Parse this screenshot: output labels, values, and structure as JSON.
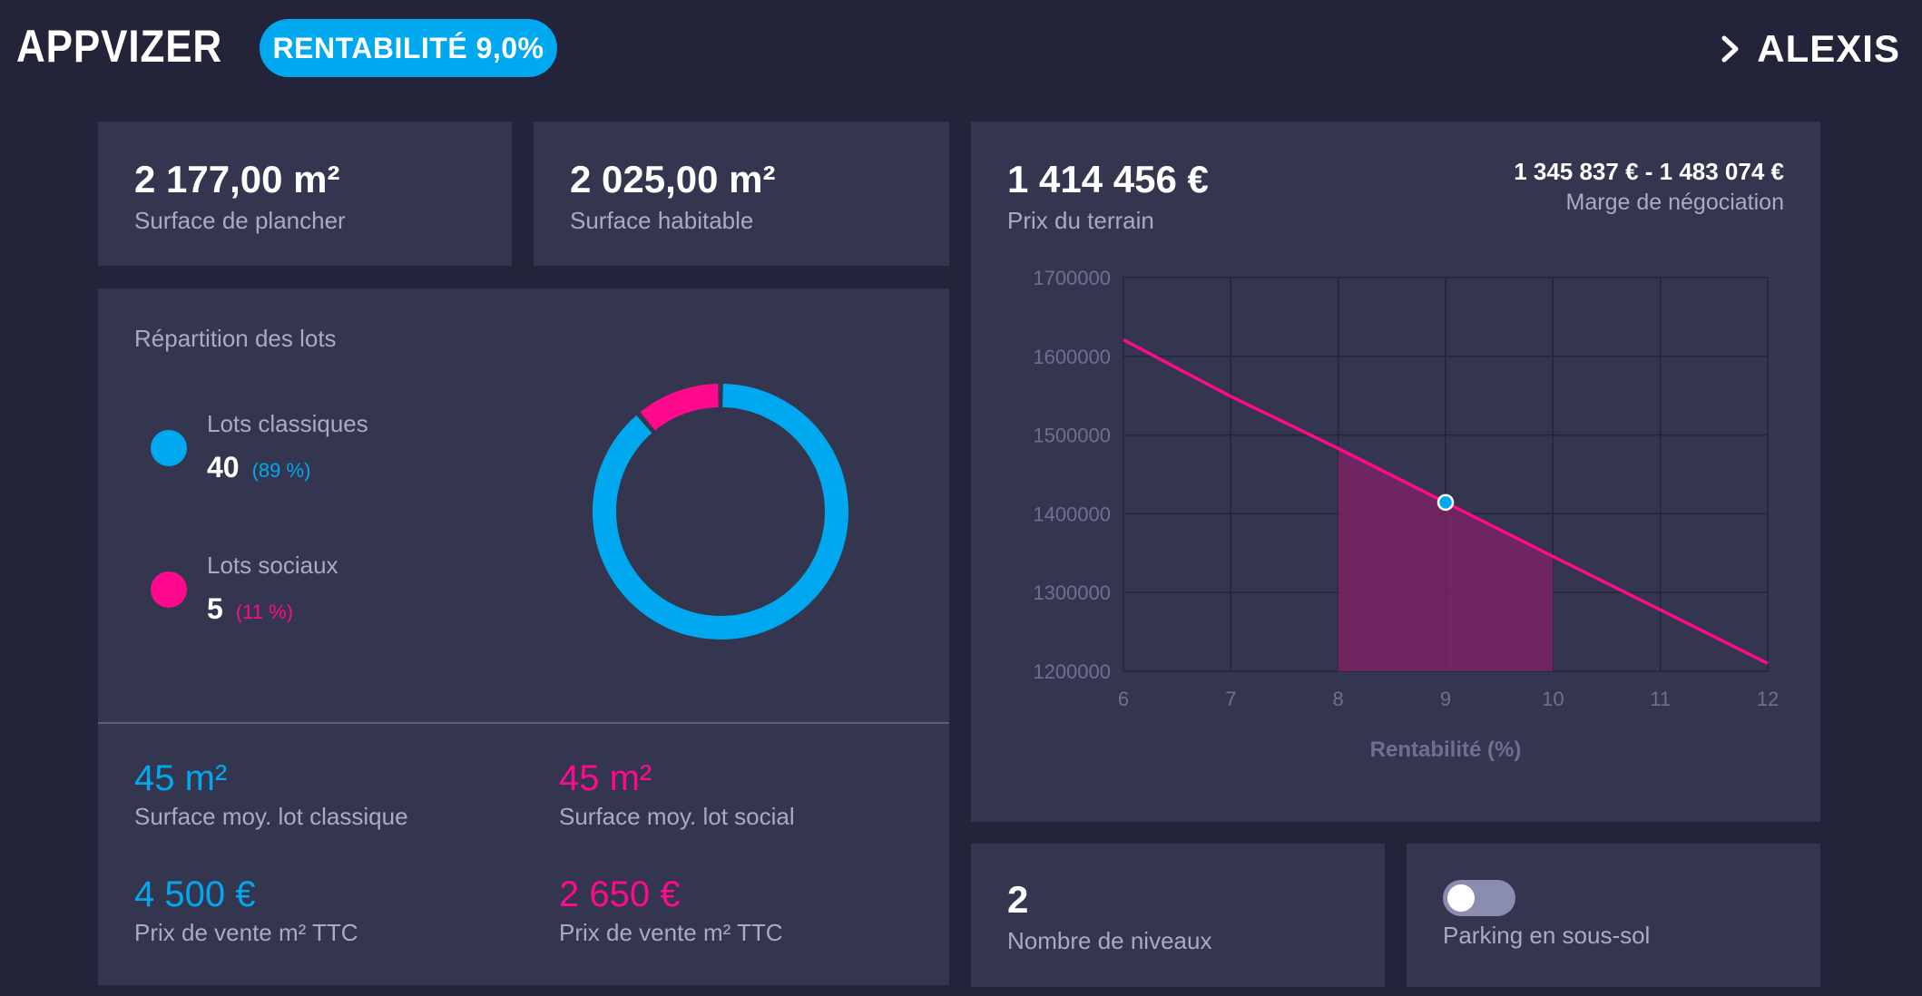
{
  "header": {
    "brand": "APPVIZER",
    "rentabilite_badge": "RENTABILITÉ 9,0%",
    "user_name": "ALEXIS"
  },
  "surfaces": {
    "plancher": {
      "value": "2 177,00 m²",
      "label": "Surface de plancher"
    },
    "habitable": {
      "value": "2 025,00 m²",
      "label": "Surface habitable"
    }
  },
  "repartition": {
    "title": "Répartition des lots",
    "classiques": {
      "label": "Lots classiques",
      "count": "40",
      "pct": "(89 %)",
      "color": "#00a8f0"
    },
    "sociaux": {
      "label": "Lots sociaux",
      "count": "5",
      "pct": "(11 %)",
      "color": "#ff0a8c"
    }
  },
  "donut_data": {
    "type": "pie",
    "slices": [
      {
        "name": "Lots classiques",
        "value": 40,
        "color": "#00a8f0"
      },
      {
        "name": "Lots sociaux",
        "value": 5,
        "color": "#ff0a8c"
      }
    ]
  },
  "stats": {
    "surface_classique": {
      "value": "45 m²",
      "label": "Surface moy. lot classique"
    },
    "surface_social": {
      "value": "45 m²",
      "label": "Surface moy. lot social"
    },
    "prix_classique": {
      "value": "4 500 €",
      "label": "Prix de vente m² TTC"
    },
    "prix_social": {
      "value": "2 650 €",
      "label": "Prix de vente m² TTC"
    }
  },
  "terrain": {
    "price": "1 414 456 €",
    "price_label": "Prix du terrain",
    "range": "1 345 837 € - 1 483 074 €",
    "range_label": "Marge de négociation"
  },
  "chart_data": {
    "type": "line",
    "title": "",
    "xlabel": "Rentabilité (%)",
    "ylabel": "",
    "xlim": [
      6,
      12
    ],
    "ylim": [
      1200000,
      1700000
    ],
    "x_ticks": [
      6,
      7,
      8,
      9,
      10,
      11,
      12
    ],
    "y_ticks": [
      1200000,
      1300000,
      1400000,
      1500000,
      1600000,
      1700000
    ],
    "grid": true,
    "series": [
      {
        "x": [
          6,
          7,
          8,
          9,
          10,
          11,
          12
        ],
        "y": [
          1621000,
          1549000,
          1483074,
          1414456,
          1345837,
          1278000,
          1210000
        ],
        "color": "#ff0a8c"
      }
    ],
    "marker": {
      "x": 9,
      "y": 1414456,
      "color": "#00a8f0"
    },
    "shaded_range": {
      "x_from": 8,
      "x_to": 10,
      "color": "#7a2263"
    }
  },
  "niveaux": {
    "value": "2",
    "label": "Nombre de niveaux"
  },
  "parking": {
    "label": "Parking en sous-sol",
    "enabled": false
  }
}
